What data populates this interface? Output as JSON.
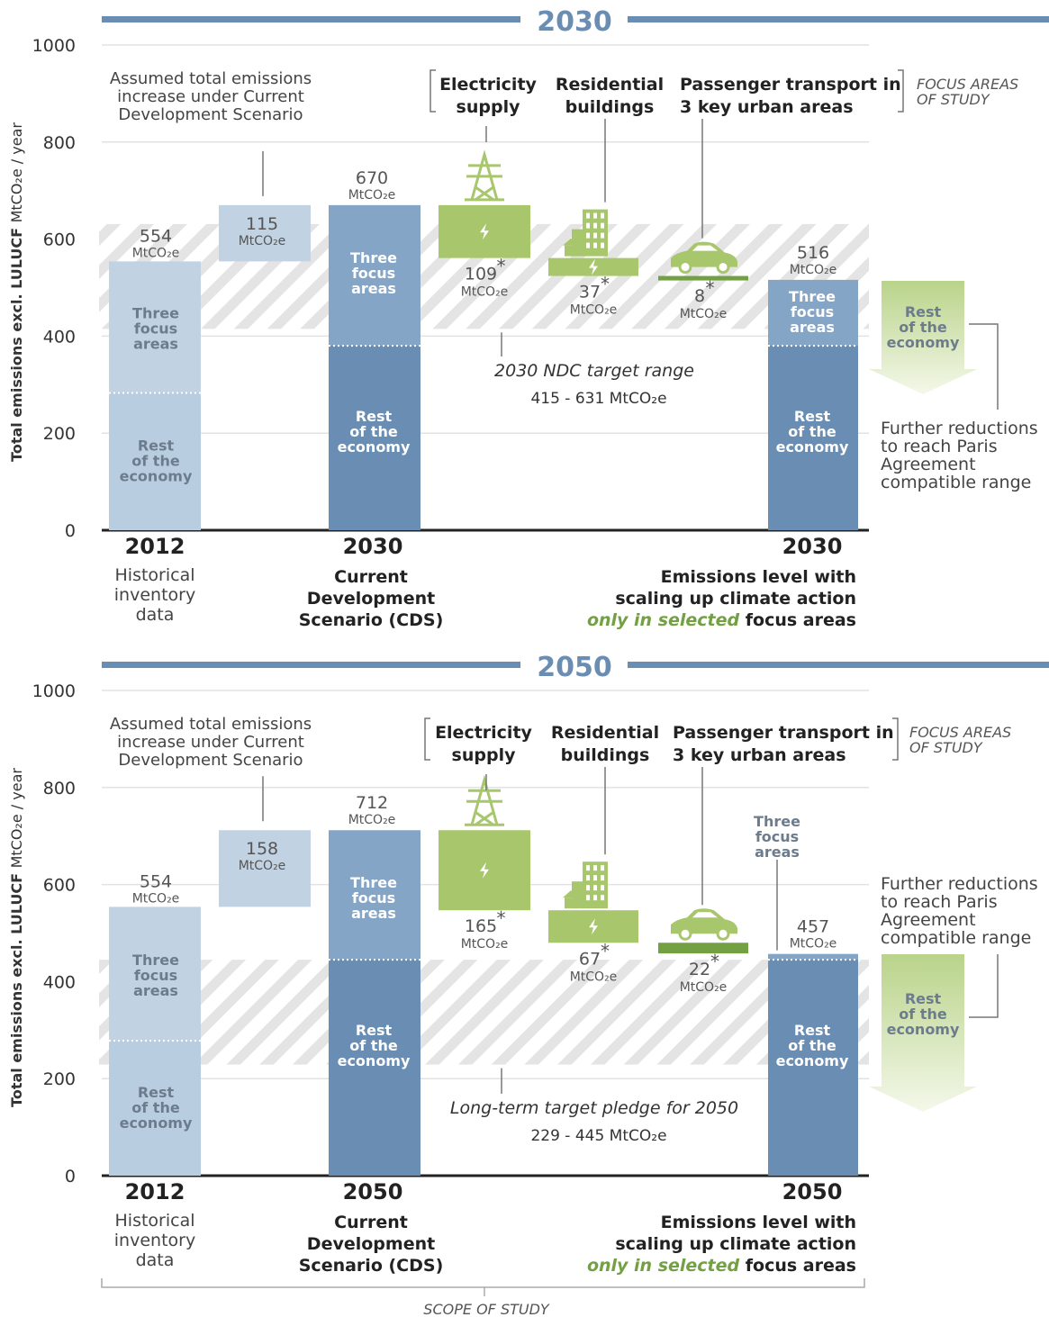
{
  "colors": {
    "dark_blue": "#6a8db3",
    "mid_blue": "#85a5c6",
    "light_blue": "#c1d2e3",
    "pale_blue": "#b9cde0",
    "green": "#a8c66c",
    "dark_green": "#72a043",
    "hatch": "#dddddd",
    "header_line": "#6a8db3",
    "axis": "#222222"
  },
  "shared": {
    "ylabel_bold": "Total emissions excl. LULUCF",
    "ylabel_rest": "MtCO₂e / year",
    "unit": "MtCO₂e",
    "increase_note": [
      "Assumed total emissions",
      "increase under Current",
      "Development Scenario"
    ],
    "three_focus": [
      "Three",
      "focus",
      "areas"
    ],
    "rest_economy": [
      "Rest",
      "of the",
      "economy"
    ],
    "hist_label": [
      "Historical",
      "inventory",
      "data"
    ],
    "cds_label": [
      "Current",
      "Development",
      "Scenario (CDS)"
    ],
    "scaling_label_1": "Emissions level with",
    "scaling_label_2": "scaling up climate action",
    "scaling_label_3_green": "only in selected",
    "scaling_label_3_rest": "focus areas",
    "focus_areas_note": [
      "FOCUS AREAS",
      "OF STUDY"
    ],
    "electricity": [
      "Electricity",
      "supply"
    ],
    "residential": [
      "Residential",
      "buildings"
    ],
    "transport": [
      "Passenger transport in",
      "3 key urban areas"
    ],
    "further": [
      "Further reductions",
      "to reach Paris",
      "Agreement",
      "compatible range"
    ],
    "scope": "SCOPE OF STUDY",
    "year_2012": "2012"
  },
  "chart_data": [
    {
      "type": "bar",
      "title": "2030",
      "yticks": [
        0,
        200,
        400,
        600,
        800,
        1000
      ],
      "ylim": [
        0,
        1000
      ],
      "bar_2012": {
        "total": 554,
        "split": 283,
        "label": "554"
      },
      "increase": {
        "value": 115,
        "label": "115"
      },
      "cds": {
        "total": 670,
        "split": 380,
        "label": "670",
        "year": "2030"
      },
      "reductions": [
        {
          "name": "Electricity supply",
          "value": 109,
          "label": "109"
        },
        {
          "name": "Residential buildings",
          "value": 37,
          "label": "37"
        },
        {
          "name": "Passenger transport",
          "value": 8,
          "label": "8"
        }
      ],
      "final": {
        "total": 516,
        "split": 380,
        "label": "516",
        "year": "2030"
      },
      "target_range": [
        415,
        631
      ],
      "target_title": "2030 NDC target range",
      "target_value": "415 - 631  MtCO₂e"
    },
    {
      "type": "bar",
      "title": "2050",
      "yticks": [
        0,
        200,
        400,
        600,
        800,
        1000
      ],
      "ylim": [
        0,
        1000
      ],
      "bar_2012": {
        "total": 554,
        "split": 278,
        "label": "554"
      },
      "increase": {
        "value": 158,
        "label": "158"
      },
      "cds": {
        "total": 712,
        "split": 445,
        "label": "712",
        "year": "2050"
      },
      "reductions": [
        {
          "name": "Electricity supply",
          "value": 165,
          "label": "165"
        },
        {
          "name": "Residential buildings",
          "value": 67,
          "label": "67"
        },
        {
          "name": "Passenger transport",
          "value": 22,
          "label": "22"
        }
      ],
      "final": {
        "total": 457,
        "split": 445,
        "label": "457",
        "year": "2050"
      },
      "target_range": [
        229,
        445
      ],
      "target_title": "Long-term target pledge for 2050",
      "target_value": "229 - 445  MtCO₂e"
    }
  ]
}
